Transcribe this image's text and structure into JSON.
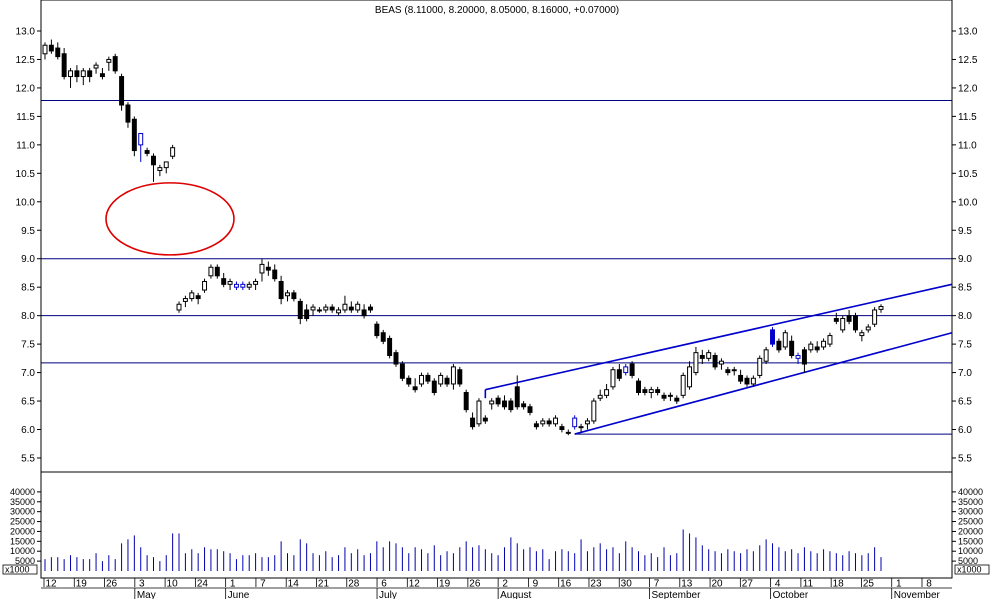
{
  "chart_data": {
    "type": "candlestick",
    "title": "BEAS (8.11000, 8.20000, 8.05000, 8.16000, +0.07000)",
    "price_axis": {
      "ylim": [
        5.2,
        13.4
      ],
      "ticks": [
        "5.5",
        "6.0",
        "6.5",
        "7.0",
        "7.5",
        "8.0",
        "8.5",
        "9.0",
        "9.5",
        "10.0",
        "10.5",
        "11.0",
        "11.5",
        "12.0",
        "12.5",
        "13.0"
      ]
    },
    "volume_axis": {
      "ylim": [
        0,
        45000
      ],
      "ticks": [
        "5000",
        "10000",
        "15000",
        "20000",
        "25000",
        "30000",
        "35000",
        "40000"
      ],
      "multiplier_label": "x1000"
    },
    "date_ticks": [
      "12",
      "19",
      "26",
      "3",
      "10",
      "24",
      "1",
      "7",
      "14",
      "21",
      "28",
      "6",
      "12",
      "19",
      "26",
      "2",
      "9",
      "16",
      "23",
      "30",
      "7",
      "13",
      "20",
      "27",
      "4",
      "11",
      "18",
      "25",
      "1",
      "8"
    ],
    "months": [
      "May",
      "June",
      "July",
      "August",
      "September",
      "October",
      "November"
    ],
    "horizontal_lines": [
      {
        "y": 11.78,
        "color": "#000080"
      },
      {
        "y": 9.0,
        "color": "#000080"
      },
      {
        "y": 8.0,
        "color": "#000080"
      },
      {
        "y": 7.17,
        "color": "#000080"
      },
      {
        "y": 5.92,
        "color": "#000080"
      }
    ],
    "trend_channel": {
      "color": "#0000cc",
      "upper": {
        "from": [
          7.0,
          6.7
        ],
        "to": [
          8.55,
          8.55
        ]
      },
      "lower": {
        "from": [
          9.5,
          5.92
        ],
        "to": [
          8.55,
          7.7
        ]
      }
    },
    "annotation_ellipse": {
      "center_price": 9.7,
      "color": "#dd0000"
    },
    "candles": [
      {
        "o": 12.6,
        "h": 12.8,
        "l": 12.5,
        "c": 12.75,
        "v": 6000
      },
      {
        "o": 12.75,
        "h": 12.85,
        "l": 12.6,
        "c": 12.65,
        "v": 7000
      },
      {
        "o": 12.7,
        "h": 12.8,
        "l": 12.5,
        "c": 12.55,
        "v": 7000
      },
      {
        "o": 12.6,
        "h": 12.7,
        "l": 12.15,
        "c": 12.2,
        "v": 6000
      },
      {
        "o": 12.2,
        "h": 12.35,
        "l": 12.0,
        "c": 12.3,
        "v": 8000
      },
      {
        "o": 12.3,
        "h": 12.4,
        "l": 12.1,
        "c": 12.2,
        "v": 7000
      },
      {
        "o": 12.2,
        "h": 12.35,
        "l": 12.05,
        "c": 12.3,
        "v": 6000
      },
      {
        "o": 12.3,
        "h": 12.35,
        "l": 12.1,
        "c": 12.2,
        "v": 6000
      },
      {
        "o": 12.35,
        "h": 12.45,
        "l": 12.25,
        "c": 12.4,
        "v": 9000
      },
      {
        "o": 12.25,
        "h": 12.35,
        "l": 12.15,
        "c": 12.2,
        "v": 5000
      },
      {
        "o": 12.45,
        "h": 12.55,
        "l": 12.3,
        "c": 12.5,
        "v": 8000
      },
      {
        "o": 12.55,
        "h": 12.6,
        "l": 12.25,
        "c": 12.3,
        "v": 6000
      },
      {
        "o": 12.2,
        "h": 12.25,
        "l": 11.6,
        "c": 11.7,
        "v": 14000
      },
      {
        "o": 11.7,
        "h": 11.75,
        "l": 11.3,
        "c": 11.4,
        "v": 16000
      },
      {
        "o": 11.45,
        "h": 11.5,
        "l": 10.8,
        "c": 10.9,
        "v": 18000
      },
      {
        "o": 11.0,
        "h": 11.2,
        "l": 10.7,
        "c": 11.2,
        "v": 12000,
        "blue": true
      },
      {
        "o": 10.9,
        "h": 10.95,
        "l": 10.8,
        "c": 10.85,
        "v": 8000
      },
      {
        "o": 10.8,
        "h": 10.85,
        "l": 10.35,
        "c": 10.65,
        "v": 7000
      },
      {
        "o": 10.55,
        "h": 10.65,
        "l": 10.45,
        "c": 10.6,
        "v": 5000
      },
      {
        "o": 10.6,
        "h": 10.7,
        "l": 10.5,
        "c": 10.7,
        "v": 8000
      },
      {
        "o": 10.8,
        "h": 11.0,
        "l": 10.75,
        "c": 10.95,
        "v": 19000
      },
      {
        "o": 8.1,
        "h": 8.25,
        "l": 8.05,
        "c": 8.2,
        "v": 19000
      },
      {
        "o": 8.25,
        "h": 8.35,
        "l": 8.15,
        "c": 8.3,
        "v": 9000
      },
      {
        "o": 8.3,
        "h": 8.45,
        "l": 8.25,
        "c": 8.4,
        "v": 11000
      },
      {
        "o": 8.35,
        "h": 8.4,
        "l": 8.2,
        "c": 8.3,
        "v": 9000
      },
      {
        "o": 8.45,
        "h": 8.65,
        "l": 8.4,
        "c": 8.6,
        "v": 12000
      },
      {
        "o": 8.7,
        "h": 8.9,
        "l": 8.65,
        "c": 8.85,
        "v": 11000
      },
      {
        "o": 8.85,
        "h": 8.9,
        "l": 8.65,
        "c": 8.7,
        "v": 11000
      },
      {
        "o": 8.65,
        "h": 8.75,
        "l": 8.5,
        "c": 8.55,
        "v": 10000
      },
      {
        "o": 8.55,
        "h": 8.65,
        "l": 8.45,
        "c": 8.6,
        "v": 9000
      },
      {
        "o": 8.5,
        "h": 8.6,
        "l": 8.45,
        "c": 8.55,
        "v": 6000,
        "blue": true
      },
      {
        "o": 8.5,
        "h": 8.6,
        "l": 8.45,
        "c": 8.55,
        "v": 8000,
        "blue": true
      },
      {
        "o": 8.5,
        "h": 8.6,
        "l": 8.45,
        "c": 8.55,
        "v": 8000
      },
      {
        "o": 8.55,
        "h": 8.65,
        "l": 8.45,
        "c": 8.6,
        "v": 9000
      },
      {
        "o": 8.75,
        "h": 9.0,
        "l": 8.6,
        "c": 8.9,
        "v": 7000
      },
      {
        "o": 8.85,
        "h": 8.95,
        "l": 8.7,
        "c": 8.8,
        "v": 7000
      },
      {
        "o": 8.8,
        "h": 8.9,
        "l": 8.6,
        "c": 8.65,
        "v": 8000
      },
      {
        "o": 8.6,
        "h": 8.7,
        "l": 8.2,
        "c": 8.3,
        "v": 15000
      },
      {
        "o": 8.35,
        "h": 8.45,
        "l": 8.25,
        "c": 8.4,
        "v": 9000
      },
      {
        "o": 8.4,
        "h": 8.45,
        "l": 8.25,
        "c": 8.3,
        "v": 8000
      },
      {
        "o": 8.25,
        "h": 8.3,
        "l": 7.85,
        "c": 7.95,
        "v": 16000
      },
      {
        "o": 8.1,
        "h": 8.2,
        "l": 7.9,
        "c": 7.95,
        "v": 14000
      },
      {
        "o": 8.1,
        "h": 8.2,
        "l": 8.0,
        "c": 8.15,
        "v": 9000
      },
      {
        "o": 8.1,
        "h": 8.15,
        "l": 8.05,
        "c": 8.1,
        "v": 8000
      },
      {
        "o": 8.1,
        "h": 8.2,
        "l": 8.05,
        "c": 8.15,
        "v": 10000
      },
      {
        "o": 8.15,
        "h": 8.2,
        "l": 8.05,
        "c": 8.1,
        "v": 7000
      },
      {
        "o": 8.05,
        "h": 8.15,
        "l": 8.0,
        "c": 8.1,
        "v": 8000
      },
      {
        "o": 8.1,
        "h": 8.35,
        "l": 8.05,
        "c": 8.2,
        "v": 12000
      },
      {
        "o": 8.15,
        "h": 8.25,
        "l": 8.05,
        "c": 8.1,
        "v": 9000
      },
      {
        "o": 8.1,
        "h": 8.25,
        "l": 8.05,
        "c": 8.2,
        "v": 11000
      },
      {
        "o": 8.1,
        "h": 8.2,
        "l": 7.95,
        "c": 8.0,
        "v": 8000
      },
      {
        "o": 8.15,
        "h": 8.2,
        "l": 8.05,
        "c": 8.1,
        "v": 9000
      },
      {
        "o": 7.85,
        "h": 7.9,
        "l": 7.6,
        "c": 7.65,
        "v": 15000
      },
      {
        "o": 7.7,
        "h": 7.75,
        "l": 7.5,
        "c": 7.55,
        "v": 12000
      },
      {
        "o": 7.6,
        "h": 7.65,
        "l": 7.25,
        "c": 7.3,
        "v": 15000
      },
      {
        "o": 7.35,
        "h": 7.4,
        "l": 7.1,
        "c": 7.15,
        "v": 14000
      },
      {
        "o": 7.15,
        "h": 7.2,
        "l": 6.85,
        "c": 6.9,
        "v": 12000
      },
      {
        "o": 6.9,
        "h": 6.95,
        "l": 6.75,
        "c": 6.8,
        "v": 9000
      },
      {
        "o": 6.75,
        "h": 6.9,
        "l": 6.65,
        "c": 6.7,
        "v": 12000
      },
      {
        "o": 6.8,
        "h": 7.0,
        "l": 6.75,
        "c": 6.95,
        "v": 11000
      },
      {
        "o": 6.95,
        "h": 7.0,
        "l": 6.8,
        "c": 6.85,
        "v": 9000
      },
      {
        "o": 6.85,
        "h": 6.9,
        "l": 6.6,
        "c": 6.65,
        "v": 13000
      },
      {
        "o": 6.8,
        "h": 7.0,
        "l": 6.75,
        "c": 6.95,
        "v": 8000
      },
      {
        "o": 6.9,
        "h": 6.95,
        "l": 6.75,
        "c": 6.8,
        "v": 10000
      },
      {
        "o": 6.8,
        "h": 7.15,
        "l": 6.7,
        "c": 7.1,
        "v": 9000
      },
      {
        "o": 7.05,
        "h": 7.1,
        "l": 6.75,
        "c": 6.8,
        "v": 12000
      },
      {
        "o": 6.65,
        "h": 6.7,
        "l": 6.3,
        "c": 6.35,
        "v": 15000
      },
      {
        "o": 6.2,
        "h": 6.3,
        "l": 6.0,
        "c": 6.05,
        "v": 12000
      },
      {
        "o": 6.1,
        "h": 6.55,
        "l": 6.05,
        "c": 6.5,
        "v": 13000
      },
      {
        "o": 6.2,
        "h": 6.25,
        "l": 6.1,
        "c": 6.15,
        "v": 11000
      },
      {
        "o": 6.45,
        "h": 6.55,
        "l": 6.35,
        "c": 6.5,
        "v": 9000
      },
      {
        "o": 6.55,
        "h": 6.6,
        "l": 6.4,
        "c": 6.45,
        "v": 8000
      },
      {
        "o": 6.5,
        "h": 6.6,
        "l": 6.35,
        "c": 6.4,
        "v": 12000
      },
      {
        "o": 6.5,
        "h": 6.55,
        "l": 6.3,
        "c": 6.35,
        "v": 17000
      },
      {
        "o": 6.75,
        "h": 6.95,
        "l": 6.35,
        "c": 6.4,
        "v": 14000
      },
      {
        "o": 6.45,
        "h": 6.5,
        "l": 6.35,
        "c": 6.4,
        "v": 11000
      },
      {
        "o": 6.4,
        "h": 6.45,
        "l": 6.25,
        "c": 6.3,
        "v": 12000
      },
      {
        "o": 6.1,
        "h": 6.15,
        "l": 6.0,
        "c": 6.05,
        "v": 10000
      },
      {
        "o": 6.1,
        "h": 6.2,
        "l": 6.05,
        "c": 6.15,
        "v": 11000
      },
      {
        "o": 6.15,
        "h": 6.2,
        "l": 6.05,
        "c": 6.1,
        "v": 6000
      },
      {
        "o": 6.1,
        "h": 6.25,
        "l": 6.05,
        "c": 6.2,
        "v": 10000
      },
      {
        "o": 6.05,
        "h": 6.1,
        "l": 5.95,
        "c": 6.0,
        "v": 11000
      },
      {
        "o": 5.95,
        "h": 6.0,
        "l": 5.9,
        "c": 5.95,
        "v": 10000
      },
      {
        "o": 6.05,
        "h": 6.25,
        "l": 6.0,
        "c": 6.2,
        "v": 9000,
        "blue": true
      },
      {
        "o": 6.05,
        "h": 6.1,
        "l": 5.95,
        "c": 6.05,
        "v": 16000
      },
      {
        "o": 6.1,
        "h": 6.2,
        "l": 6.0,
        "c": 6.15,
        "v": 10000
      },
      {
        "o": 6.15,
        "h": 6.55,
        "l": 6.1,
        "c": 6.5,
        "v": 12000
      },
      {
        "o": 6.55,
        "h": 6.7,
        "l": 6.5,
        "c": 6.6,
        "v": 14000
      },
      {
        "o": 6.6,
        "h": 6.8,
        "l": 6.55,
        "c": 6.7,
        "v": 11000
      },
      {
        "o": 6.75,
        "h": 7.1,
        "l": 6.7,
        "c": 7.05,
        "v": 12000
      },
      {
        "o": 7.05,
        "h": 7.15,
        "l": 6.85,
        "c": 6.9,
        "v": 9000
      },
      {
        "o": 7.0,
        "h": 7.15,
        "l": 6.95,
        "c": 7.1,
        "v": 15000,
        "blue": true
      },
      {
        "o": 7.15,
        "h": 7.2,
        "l": 6.9,
        "c": 6.95,
        "v": 12000
      },
      {
        "o": 6.85,
        "h": 6.9,
        "l": 6.6,
        "c": 6.65,
        "v": 10000
      },
      {
        "o": 6.7,
        "h": 6.75,
        "l": 6.6,
        "c": 6.65,
        "v": 8000
      },
      {
        "o": 6.65,
        "h": 6.75,
        "l": 6.55,
        "c": 6.7,
        "v": 9000
      },
      {
        "o": 6.7,
        "h": 6.75,
        "l": 6.6,
        "c": 6.65,
        "v": 7000
      },
      {
        "o": 6.6,
        "h": 6.65,
        "l": 6.5,
        "c": 6.55,
        "v": 12000
      },
      {
        "o": 6.6,
        "h": 6.65,
        "l": 6.5,
        "c": 6.6,
        "v": 8000
      },
      {
        "o": 6.55,
        "h": 6.6,
        "l": 6.45,
        "c": 6.5,
        "v": 9000
      },
      {
        "o": 6.6,
        "h": 7.0,
        "l": 6.55,
        "c": 6.95,
        "v": 21000
      },
      {
        "o": 6.75,
        "h": 7.2,
        "l": 6.7,
        "c": 7.1,
        "v": 19000
      },
      {
        "o": 7.0,
        "h": 7.45,
        "l": 6.95,
        "c": 7.35,
        "v": 17000
      },
      {
        "o": 7.3,
        "h": 7.4,
        "l": 7.15,
        "c": 7.25,
        "v": 13000
      },
      {
        "o": 7.25,
        "h": 7.4,
        "l": 7.2,
        "c": 7.35,
        "v": 11000
      },
      {
        "o": 7.3,
        "h": 7.35,
        "l": 7.05,
        "c": 7.1,
        "v": 10000
      },
      {
        "o": 7.15,
        "h": 7.25,
        "l": 7.05,
        "c": 7.2,
        "v": 9000
      },
      {
        "o": 7.05,
        "h": 7.1,
        "l": 6.95,
        "c": 7.0,
        "v": 11000
      },
      {
        "o": 7.05,
        "h": 7.1,
        "l": 6.95,
        "c": 7.05,
        "v": 10000
      },
      {
        "o": 6.95,
        "h": 7.05,
        "l": 6.8,
        "c": 6.85,
        "v": 9000
      },
      {
        "o": 6.9,
        "h": 6.95,
        "l": 6.75,
        "c": 6.8,
        "v": 11000
      },
      {
        "o": 6.8,
        "h": 6.95,
        "l": 6.75,
        "c": 6.9,
        "v": 10000
      },
      {
        "o": 6.95,
        "h": 7.3,
        "l": 6.9,
        "c": 7.25,
        "v": 13000
      },
      {
        "o": 7.2,
        "h": 7.45,
        "l": 7.15,
        "c": 7.4,
        "v": 16000
      },
      {
        "o": 7.75,
        "h": 7.8,
        "l": 7.45,
        "c": 7.5,
        "v": 14000,
        "blue": true
      },
      {
        "o": 7.55,
        "h": 7.6,
        "l": 7.35,
        "c": 7.4,
        "v": 12000
      },
      {
        "o": 7.45,
        "h": 7.75,
        "l": 7.4,
        "c": 7.7,
        "v": 10000
      },
      {
        "o": 7.55,
        "h": 7.65,
        "l": 7.25,
        "c": 7.3,
        "v": 11000
      },
      {
        "o": 7.25,
        "h": 7.35,
        "l": 7.15,
        "c": 7.3,
        "v": 9000,
        "blue": true
      },
      {
        "o": 7.4,
        "h": 7.45,
        "l": 7.0,
        "c": 7.15,
        "v": 12000
      },
      {
        "o": 7.4,
        "h": 7.55,
        "l": 7.35,
        "c": 7.5,
        "v": 10000
      },
      {
        "o": 7.45,
        "h": 7.55,
        "l": 7.35,
        "c": 7.4,
        "v": 9000
      },
      {
        "o": 7.45,
        "h": 7.6,
        "l": 7.4,
        "c": 7.55,
        "v": 11000
      },
      {
        "o": 7.5,
        "h": 7.7,
        "l": 7.45,
        "c": 7.65,
        "v": 10000
      },
      {
        "o": 7.95,
        "h": 8.05,
        "l": 7.85,
        "c": 7.9,
        "v": 9000
      },
      {
        "o": 7.75,
        "h": 8.0,
        "l": 7.7,
        "c": 7.95,
        "v": 8000
      },
      {
        "o": 8.0,
        "h": 8.1,
        "l": 7.85,
        "c": 7.9,
        "v": 10000
      },
      {
        "o": 8.0,
        "h": 8.05,
        "l": 7.7,
        "c": 7.75,
        "v": 9000
      },
      {
        "o": 7.65,
        "h": 7.75,
        "l": 7.55,
        "c": 7.7,
        "v": 8000
      },
      {
        "o": 7.75,
        "h": 7.85,
        "l": 7.7,
        "c": 7.8,
        "v": 9000
      },
      {
        "o": 7.85,
        "h": 8.15,
        "l": 7.8,
        "c": 8.1,
        "v": 12000
      },
      {
        "o": 8.11,
        "h": 8.2,
        "l": 8.05,
        "c": 8.16,
        "v": 7000
      }
    ]
  }
}
